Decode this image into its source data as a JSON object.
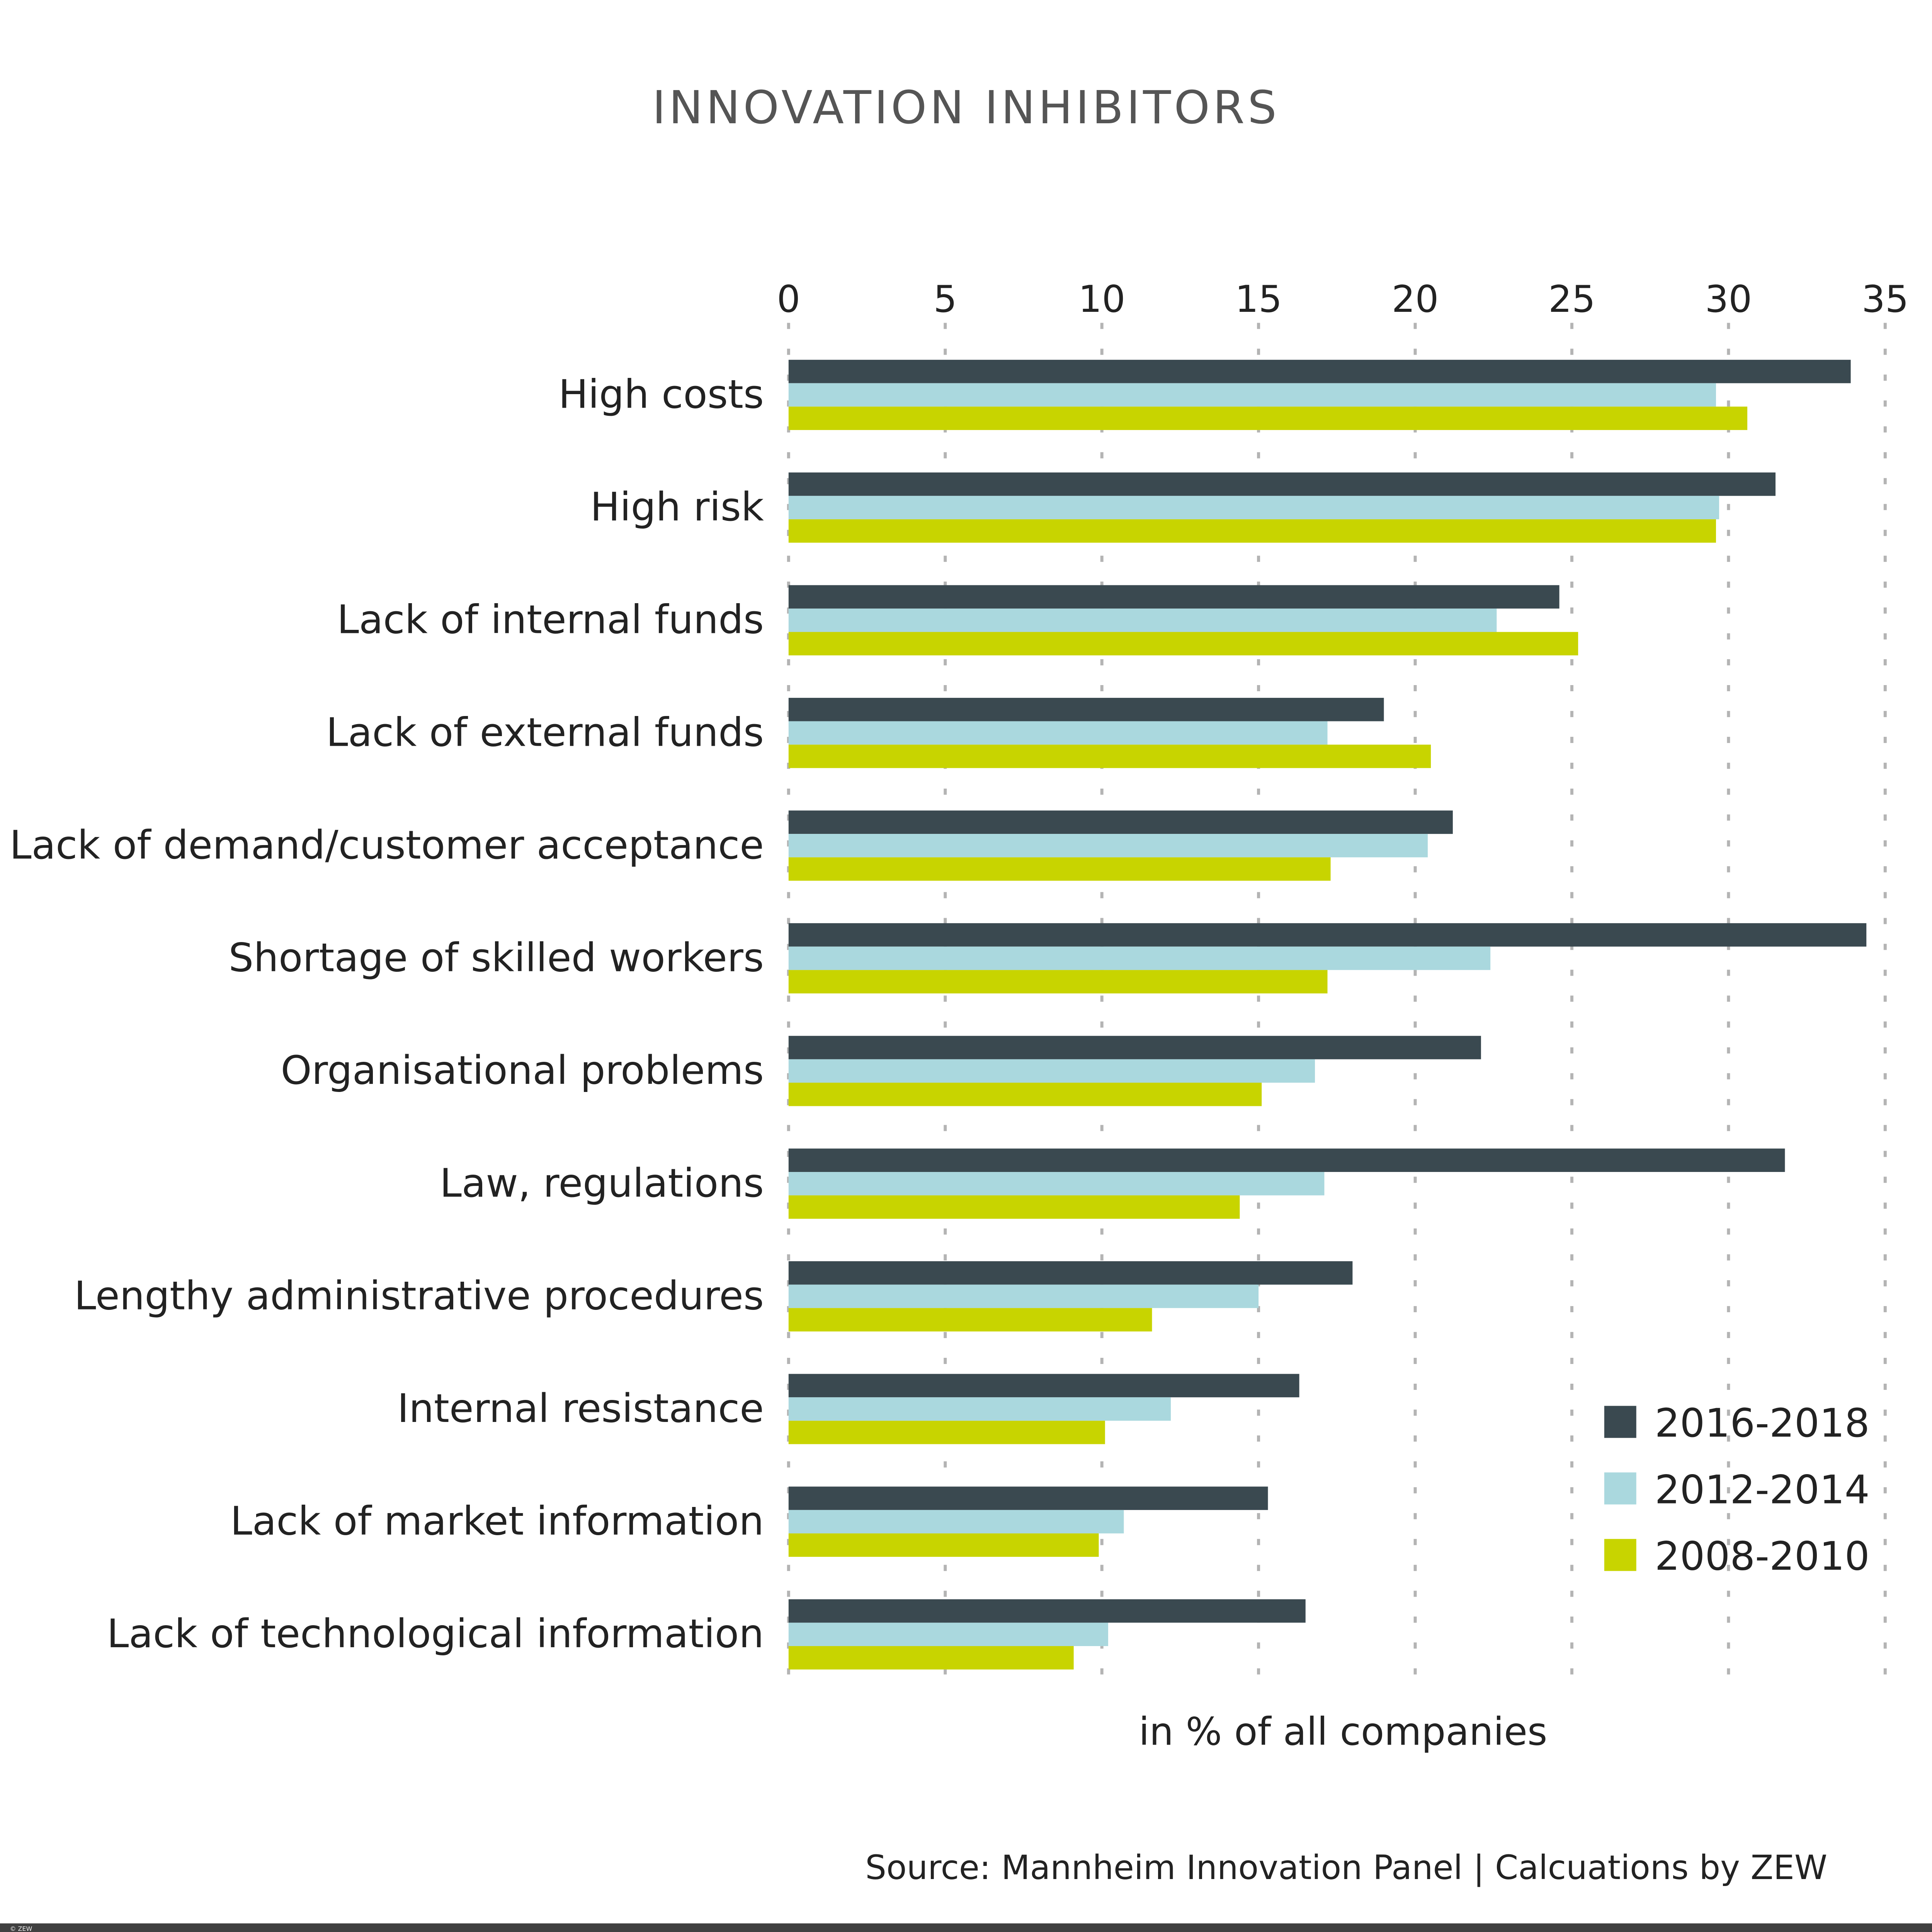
{
  "chart_data": {
    "type": "bar",
    "orientation": "horizontal",
    "title": "INNOVATION INHIBITORS",
    "xlabel": "in % of all companies",
    "ylabel": "",
    "xlim": [
      0,
      35
    ],
    "x_ticks": [
      "0",
      "5",
      "10",
      "15",
      "20",
      "25",
      "30",
      "35"
    ],
    "x_axis_position": "top",
    "grid": "vertical dotted",
    "legend_position": "bottom-right",
    "categories": [
      "High costs",
      "High risk",
      "Lack of internal funds",
      "Lack of external funds",
      "Lack of demand/customer acceptance",
      "Shortage of skilled workers",
      "Organisational problems",
      "Law, regulations",
      "Lengthy administrative procedures",
      "Internal resistance",
      "Lack of market information",
      "Lack of technological information"
    ],
    "series": [
      {
        "name": "2016-2018",
        "color": "#3a4950",
        "values": [
          33.9,
          31.5,
          24.6,
          19.0,
          21.2,
          34.4,
          22.1,
          31.8,
          18.0,
          16.3,
          15.3,
          16.5
        ]
      },
      {
        "name": "2012-2014",
        "color": "#aad8de",
        "values": [
          29.6,
          29.7,
          22.6,
          17.2,
          20.4,
          22.4,
          16.8,
          17.1,
          15.0,
          12.2,
          10.7,
          10.2
        ]
      },
      {
        "name": "2008-2010",
        "color": "#c8d400",
        "values": [
          30.6,
          29.6,
          25.2,
          20.5,
          17.3,
          17.2,
          15.1,
          14.4,
          11.6,
          10.1,
          9.9,
          9.1
        ]
      }
    ],
    "source": "Source: Mannheim Innovation Panel | Calcuations by ZEW"
  },
  "footer": {
    "copyright": "© ZEW"
  }
}
